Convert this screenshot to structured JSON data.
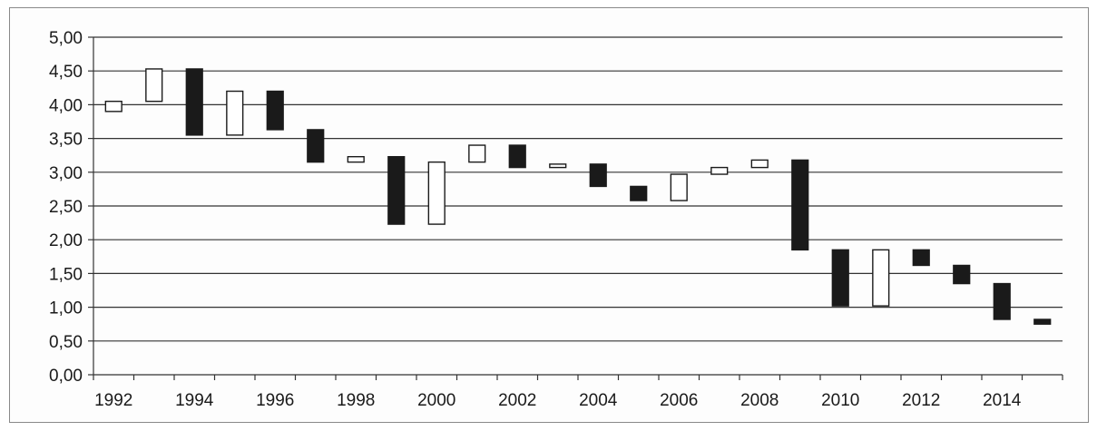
{
  "chart_data": {
    "type": "candlestick",
    "title": "",
    "xlabel": "",
    "ylabel": "",
    "ylim": [
      0,
      5
    ],
    "y_ticks": [
      "0,00",
      "0,50",
      "1,00",
      "1,50",
      "2,00",
      "2,50",
      "3,00",
      "3,50",
      "4,00",
      "4,50",
      "5,00"
    ],
    "x_tick_labels": [
      "1992",
      "1994",
      "1996",
      "1998",
      "2000",
      "2002",
      "2004",
      "2006",
      "2008",
      "2010",
      "2012",
      "2014"
    ],
    "grid": "horizontal",
    "up_color": "#ffffff",
    "down_color": "#1a1a1a",
    "years": [
      1992,
      1993,
      1994,
      1995,
      1996,
      1997,
      1998,
      1999,
      2000,
      2001,
      2002,
      2003,
      2004,
      2005,
      2006,
      2007,
      2008,
      2009,
      2010,
      2011,
      2012,
      2013,
      2014,
      2015
    ],
    "open": [
      3.9,
      4.05,
      4.53,
      3.55,
      4.2,
      3.63,
      3.15,
      3.23,
      2.23,
      3.15,
      3.4,
      3.07,
      3.12,
      2.79,
      2.58,
      2.97,
      3.07,
      3.18,
      1.85,
      1.02,
      1.85,
      1.62,
      1.35,
      0.82
    ],
    "close": [
      4.05,
      4.53,
      3.55,
      4.2,
      3.63,
      3.15,
      3.23,
      2.23,
      3.15,
      3.4,
      3.07,
      3.12,
      2.79,
      2.58,
      2.97,
      3.07,
      3.18,
      1.85,
      1.02,
      1.85,
      1.62,
      1.35,
      0.82,
      0.75
    ]
  }
}
